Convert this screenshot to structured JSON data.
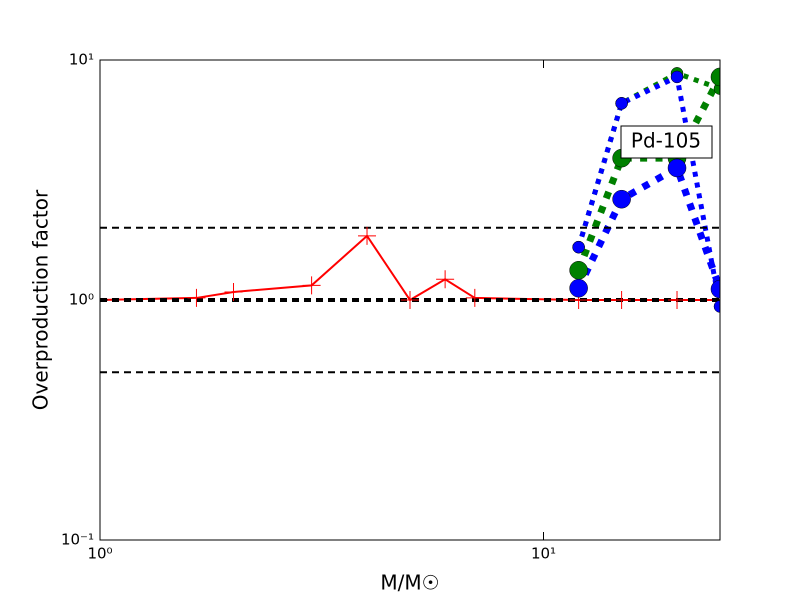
{
  "chart_data": {
    "type": "line",
    "xlabel": "M/M☉",
    "ylabel": "Overproduction factor",
    "annotation": "Pd-105",
    "log_x": true,
    "log_y": true,
    "xlim": [
      1,
      25
    ],
    "ylim": [
      0.1,
      10
    ],
    "xticks": [
      {
        "value": 1,
        "label": "10⁰"
      },
      {
        "value": 10,
        "label": "10¹"
      }
    ],
    "yticks": [
      {
        "value": 0.1,
        "label": "10⁻¹"
      },
      {
        "value": 1,
        "label": "10⁰"
      },
      {
        "value": 10,
        "label": "10¹"
      }
    ],
    "hlines": [
      2,
      1,
      0.5
    ],
    "hline_widths": [
      2,
      4,
      2
    ],
    "x": [
      1,
      1.65,
      2,
      3,
      4,
      5,
      6,
      7,
      12,
      15,
      20,
      25
    ],
    "series": [
      {
        "color": "#ff0000",
        "linestyle": "solid",
        "linewidth": 2,
        "marker": "plus",
        "markersize": 9,
        "values": [
          1,
          1.02,
          1.08,
          1.15,
          1.85,
          1.0,
          1.22,
          1.02,
          1.0,
          1.0,
          1.0,
          1.0
        ]
      },
      {
        "color": "#008000",
        "linestyle": "dotted",
        "linewidth": 5,
        "marker": "circle",
        "markersize": 6,
        "values": [
          null,
          null,
          null,
          null,
          null,
          null,
          null,
          null,
          1.66,
          6.6,
          8.8,
          7.6
        ]
      },
      {
        "color": "#008000",
        "linestyle": "dotted",
        "linewidth": 7,
        "marker": "circle",
        "markersize": 9,
        "values": [
          null,
          null,
          null,
          null,
          null,
          null,
          null,
          null,
          1.33,
          3.9,
          3.9,
          8.5
        ]
      },
      {
        "color": "#0000ff",
        "linestyle": "dotted",
        "linewidth": 5,
        "marker": "circle",
        "markersize": 6,
        "values": [
          null,
          null,
          null,
          null,
          null,
          null,
          null,
          null,
          1.66,
          6.6,
          8.5,
          0.94
        ]
      },
      {
        "color": "#0000ff",
        "linestyle": "dotted",
        "linewidth": 7,
        "marker": "circle",
        "markersize": 9,
        "values": [
          null,
          null,
          null,
          null,
          null,
          null,
          null,
          null,
          1.12,
          2.63,
          3.55,
          1.11
        ]
      }
    ]
  }
}
